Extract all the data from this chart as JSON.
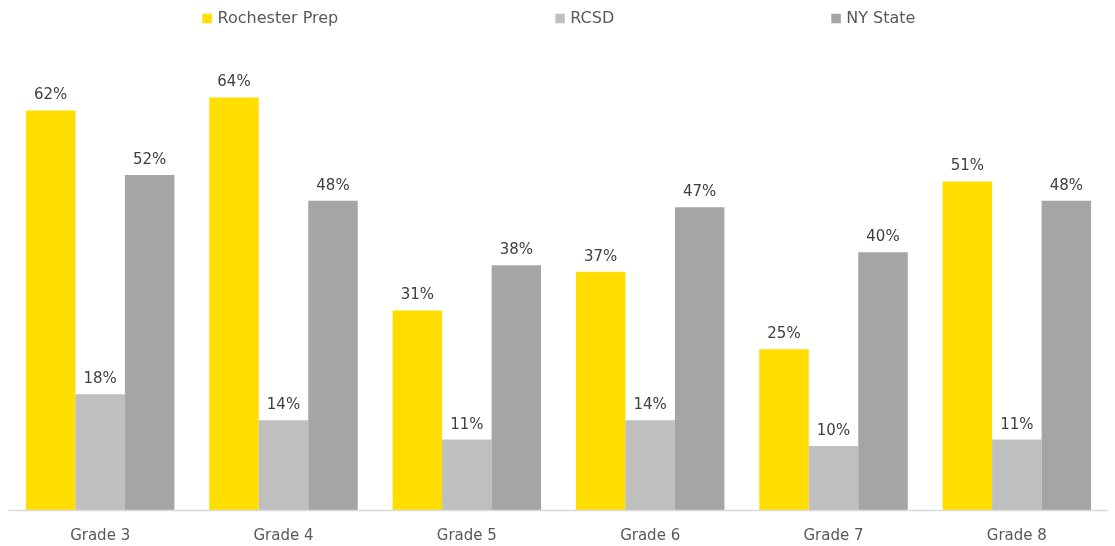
{
  "chart_data": {
    "type": "bar",
    "categories": [
      "Grade 3",
      "Grade 4",
      "Grade 5",
      "Grade 6",
      "Grade 7",
      "Grade 8"
    ],
    "series": [
      {
        "name": "Rochester Prep",
        "color": "#ffde00",
        "values": [
          62,
          64,
          31,
          37,
          25,
          51
        ],
        "value_labels": [
          "62%",
          "64%",
          "31%",
          "37%",
          "25%",
          "51%"
        ]
      },
      {
        "name": "RCSD",
        "color": "#bfbfbf",
        "values": [
          18,
          14,
          11,
          14,
          10,
          11
        ],
        "value_labels": [
          "18%",
          "14%",
          "11%",
          "14%",
          "10%",
          "11%"
        ]
      },
      {
        "name": "NY State",
        "color": "#a5a5a5",
        "values": [
          52,
          48,
          38,
          47,
          40,
          48
        ],
        "value_labels": [
          "52%",
          "48%",
          "38%",
          "47%",
          "40%",
          "48%"
        ]
      }
    ],
    "legend": "top",
    "grid": false,
    "tick_labels": "x"
  }
}
